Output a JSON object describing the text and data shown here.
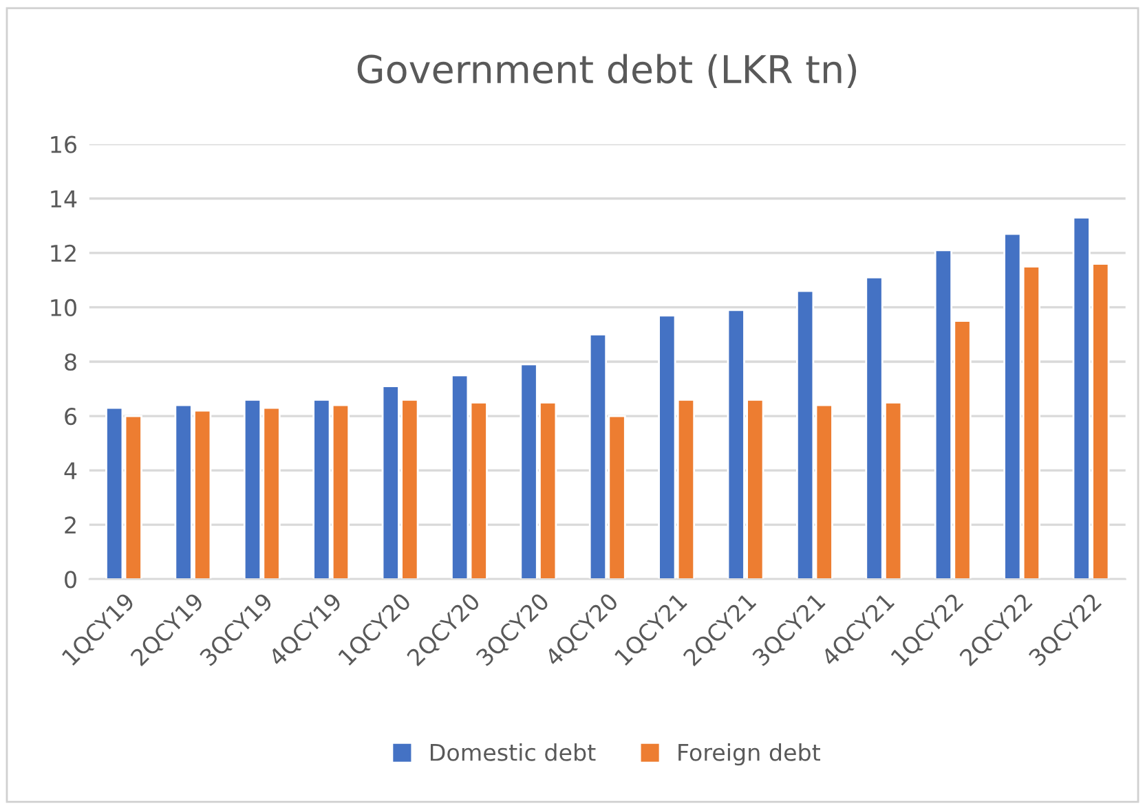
{
  "chart_data": {
    "type": "bar",
    "title": "Government debt (LKR tn)",
    "categories": [
      "1QCY19",
      "2QCY19",
      "3QCY19",
      "4QCY19",
      "1QCY20",
      "2QCY20",
      "3QCY20",
      "4QCY20",
      "1QCY21",
      "2QCY21",
      "3QCY21",
      "4QCY21",
      "1QCY22",
      "2QCY22",
      "3QCY22"
    ],
    "series": [
      {
        "name": "Domestic debt",
        "color": "#4472c4",
        "values": [
          6.3,
          6.4,
          6.6,
          6.6,
          7.1,
          7.5,
          7.9,
          9.0,
          9.7,
          9.9,
          10.6,
          11.1,
          12.1,
          12.7,
          13.3
        ]
      },
      {
        "name": "Foreign debt",
        "color": "#ed7d31",
        "values": [
          6.0,
          6.2,
          6.3,
          6.4,
          6.6,
          6.5,
          6.5,
          6.0,
          6.6,
          6.6,
          6.4,
          6.5,
          9.5,
          11.5,
          11.6
        ]
      }
    ],
    "ylim": [
      0,
      16
    ],
    "yticks": [
      0,
      2,
      4,
      6,
      8,
      10,
      12,
      14,
      16
    ],
    "grid": "y",
    "legend": "bottom"
  }
}
